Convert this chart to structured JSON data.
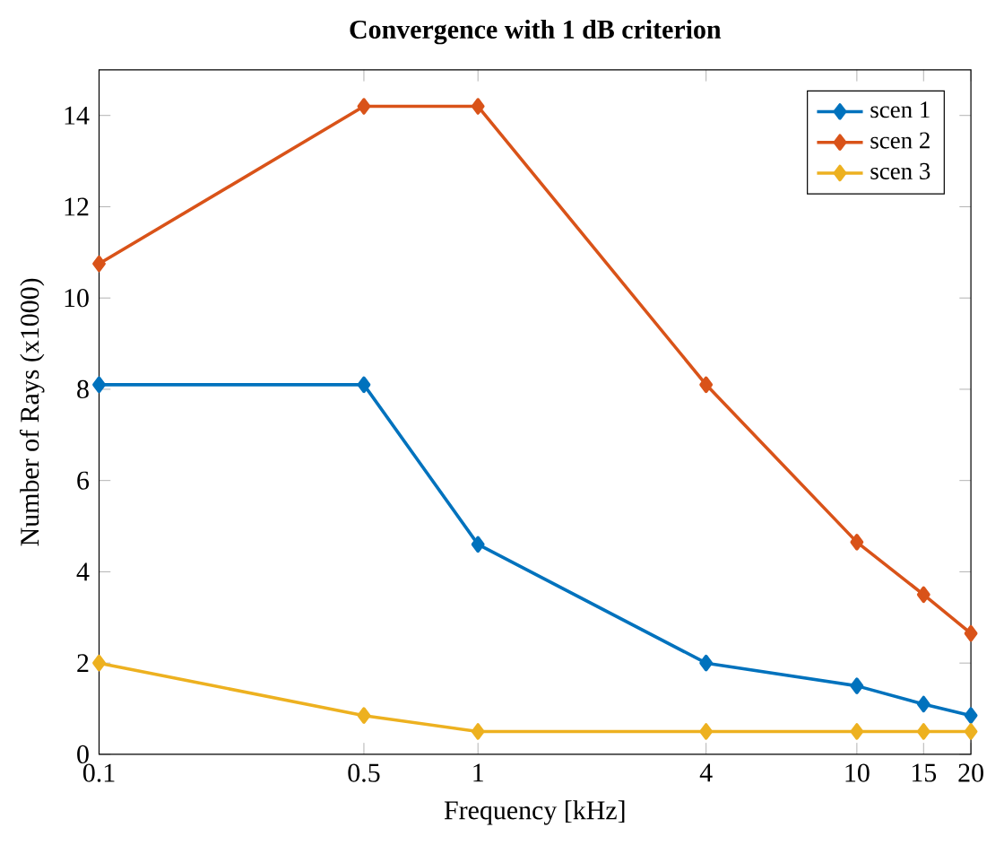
{
  "chart_data": {
    "type": "line",
    "title": "Convergence with 1 dB criterion",
    "xlabel": "Frequency [kHz]",
    "ylabel": "Number of Rays (x1000)",
    "x": [
      0.1,
      0.5,
      1,
      4,
      10,
      15,
      20
    ],
    "series": [
      {
        "name": "scen 1",
        "color": "#0072bd",
        "values": [
          8.1,
          8.1,
          4.6,
          2.0,
          1.5,
          1.1,
          0.85
        ]
      },
      {
        "name": "scen 2",
        "color": "#d95319",
        "values": [
          10.75,
          14.2,
          14.2,
          8.1,
          4.65,
          3.5,
          2.65
        ]
      },
      {
        "name": "scen 3",
        "color": "#edb120",
        "values": [
          2.0,
          0.85,
          0.5,
          0.5,
          0.5,
          0.5,
          0.5
        ]
      }
    ],
    "log": "x",
    "xlim": [
      0.1,
      20
    ],
    "ylim": [
      0,
      15
    ],
    "xticks": [
      0.1,
      0.5,
      1,
      4,
      10,
      15,
      20
    ],
    "yticks": [
      0,
      2,
      4,
      6,
      8,
      10,
      12,
      14
    ],
    "legend": "top right",
    "marker": "diamond",
    "line_style": "solid",
    "grid": false
  }
}
